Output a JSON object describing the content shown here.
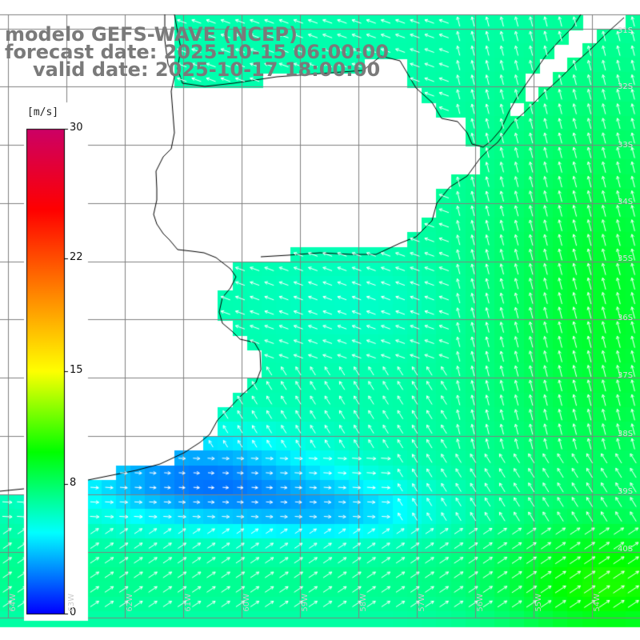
{
  "title": {
    "line1": "modelo GEFS-WAVE (NCEP)",
    "line2": "forecast date: 2025-10-15 06:00:00",
    "line3": "valid date: 2025-10-17 18:00:00"
  },
  "colorbar": {
    "unit": "[m/s]",
    "min": 0,
    "max": 30,
    "ticks": [
      "0",
      "8",
      "15",
      "22",
      "30"
    ],
    "tick_values": [
      0,
      8,
      15,
      22,
      30
    ],
    "stops": [
      "#0000ff",
      "#00ffff",
      "#00ff00",
      "#ffff00",
      "#ff8000",
      "#ff0000",
      "#cc0066"
    ]
  },
  "grid": {
    "lat_labels": [
      "31S",
      "32S",
      "33S",
      "34S",
      "35S",
      "36S",
      "37S",
      "38S",
      "39S",
      "40S"
    ],
    "lat_values": [
      -31,
      -32,
      -33,
      -34,
      -35,
      -36,
      -37,
      -38,
      -39,
      -40
    ],
    "lon_labels": [
      "64W",
      "63W",
      "62W",
      "61W",
      "60W",
      "59W",
      "58W",
      "57W",
      "56W",
      "55W",
      "54W"
    ],
    "lon_values": [
      -64,
      -63,
      -62,
      -61,
      -60,
      -59,
      -58,
      -57,
      -56,
      -55,
      -54
    ]
  },
  "colors": {
    "land": "#ffffff",
    "grid_line": "#808080",
    "coastline": "#000000",
    "arrows": "#ffffff",
    "title_text": "#7a7a7a"
  },
  "field": {
    "variable": "wind speed",
    "unit": "m/s",
    "description_region": "Rio de la Plata / Uruguay / Buenos Aires coast",
    "min_value": 2,
    "max_value": 11
  }
}
